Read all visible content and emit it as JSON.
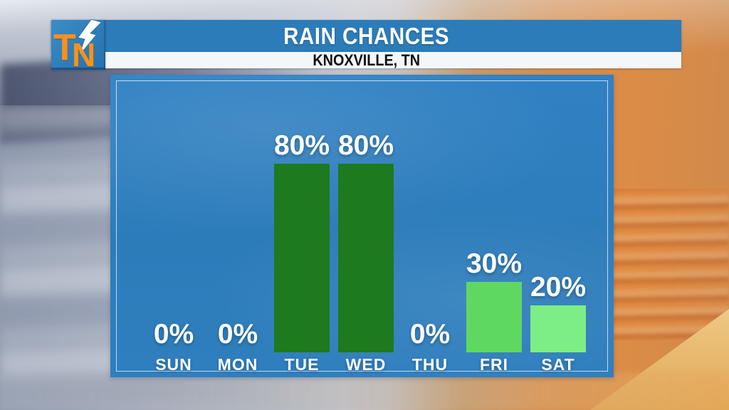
{
  "header": {
    "title": "RAIN CHANCES",
    "subtitle": "KNOXVILLE, TN",
    "logo": {
      "t": "T",
      "n": "N",
      "icon": "lightning-bolt-icon"
    }
  },
  "chart_data": {
    "type": "bar",
    "title": "RAIN CHANCES",
    "subtitle": "KNOXVILLE, TN",
    "categories": [
      "SUN",
      "MON",
      "TUE",
      "WED",
      "THU",
      "FRI",
      "SAT"
    ],
    "values": [
      0,
      0,
      80,
      80,
      0,
      30,
      20
    ],
    "unit": "%",
    "value_labels": [
      "0%",
      "0%",
      "80%",
      "80%",
      "0%",
      "30%",
      "20%"
    ],
    "ylim": [
      0,
      100
    ],
    "grid": false,
    "legend": false,
    "bar_colors": [
      null,
      null,
      "#1e7a1e",
      "#1e7a1e",
      null,
      "#5fd862",
      "#7dee85"
    ]
  },
  "colors": {
    "header_blue": "#2b7cb9",
    "panel_blue": "#2e7fc0",
    "bar_green_dark": "#1e7a1e",
    "bar_green_medium": "#5fd862",
    "bar_green_light": "#7dee85",
    "logo_orange": "#f6921e",
    "subtitle_bar_white": "#f4f7fa",
    "label_white": "#ffffff"
  }
}
